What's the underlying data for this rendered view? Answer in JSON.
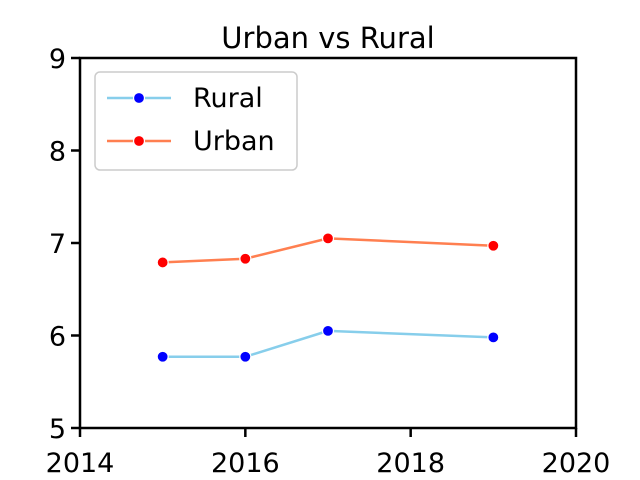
{
  "chart_data": {
    "type": "line",
    "title": "Urban vs Rural",
    "xlabel": "",
    "ylabel": "",
    "xlim": [
      2014,
      2020
    ],
    "ylim": [
      5,
      9
    ],
    "xticks": [
      2014,
      2016,
      2018,
      2020
    ],
    "yticks": [
      5,
      6,
      7,
      8,
      9
    ],
    "grid": false,
    "legend_position": "upper-left",
    "series": [
      {
        "name": "Rural",
        "line_color": "#87ceeb",
        "marker_color": "#0000ff",
        "x": [
          2015,
          2016,
          2017,
          2019
        ],
        "values": [
          5.77,
          5.77,
          6.05,
          5.98
        ]
      },
      {
        "name": "Urban",
        "line_color": "#ff7f50",
        "marker_color": "#ff0000",
        "x": [
          2015,
          2016,
          2017,
          2019
        ],
        "values": [
          6.79,
          6.83,
          7.05,
          6.97
        ]
      }
    ]
  }
}
